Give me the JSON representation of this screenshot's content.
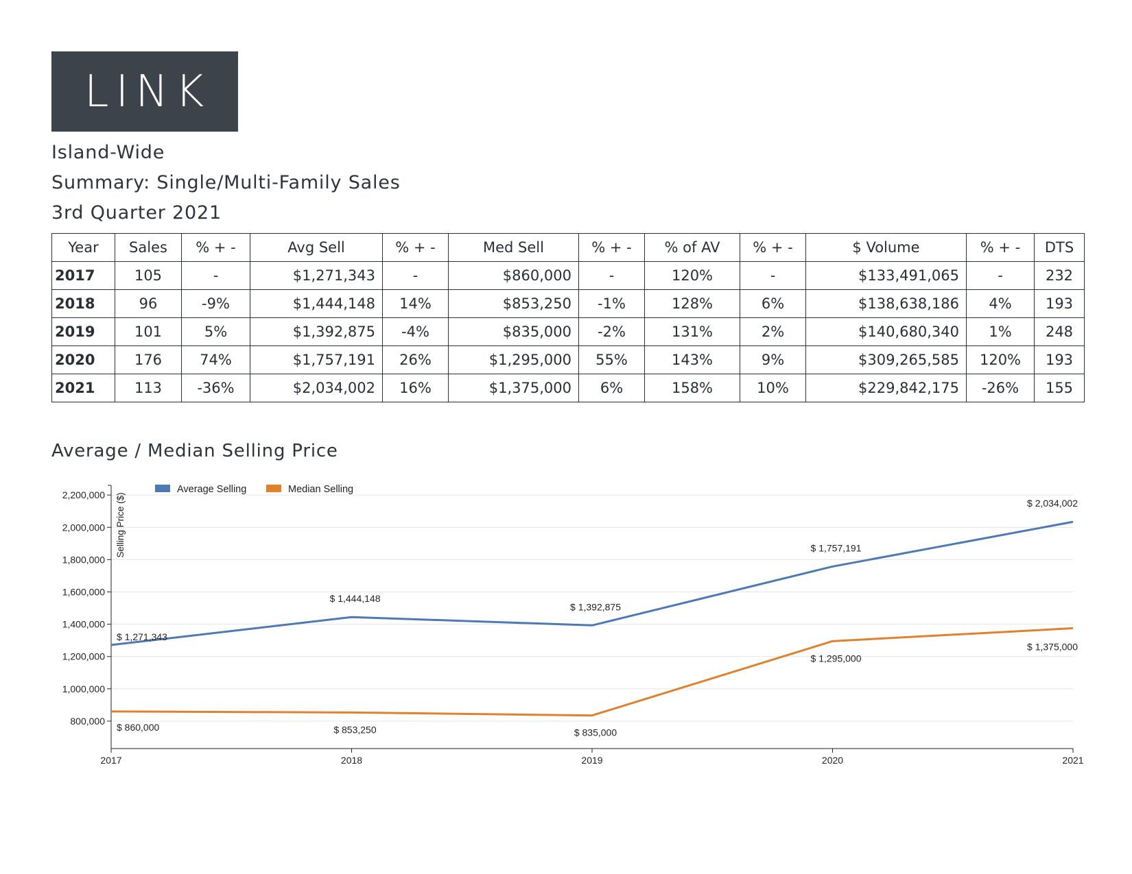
{
  "logo": {
    "text": "LINK"
  },
  "header": {
    "region": "Island-Wide",
    "summary": "Summary: Single/Multi-Family Sales",
    "period": "3rd Quarter 2021"
  },
  "table": {
    "columns": [
      "Year",
      "Sales",
      "% + -",
      "Avg Sell",
      "% + -",
      "Med Sell",
      "% + -",
      "% of AV",
      "% + -",
      "$ Volume",
      "% + -",
      "DTS"
    ],
    "rows": [
      [
        "2017",
        "105",
        "-",
        "$1,271,343",
        "-",
        "$860,000",
        "-",
        "120%",
        "-",
        "$133,491,065",
        "-",
        "232"
      ],
      [
        "2018",
        "96",
        "-9%",
        "$1,444,148",
        "14%",
        "$853,250",
        "-1%",
        "128%",
        "6%",
        "$138,638,186",
        "4%",
        "193"
      ],
      [
        "2019",
        "101",
        "5%",
        "$1,392,875",
        "-4%",
        "$835,000",
        "-2%",
        "131%",
        "2%",
        "$140,680,340",
        "1%",
        "248"
      ],
      [
        "2020",
        "176",
        "74%",
        "$1,757,191",
        "26%",
        "$1,295,000",
        "55%",
        "143%",
        "9%",
        "$309,265,585",
        "120%",
        "193"
      ],
      [
        "2021",
        "113",
        "-36%",
        "$2,034,002",
        "16%",
        "$1,375,000",
        "6%",
        "158%",
        "10%",
        "$229,842,175",
        "-26%",
        "155"
      ]
    ]
  },
  "chart_section": {
    "title": "Average / Median Selling Price"
  },
  "chart_data": {
    "type": "line",
    "title": "Average / Median Selling Price",
    "xlabel": "",
    "ylabel": "Selling Price ($)",
    "x": [
      "2017",
      "2018",
      "2019",
      "2020",
      "2021"
    ],
    "ylim": [
      630000,
      2260000
    ],
    "yticks": [
      800000,
      1000000,
      1200000,
      1400000,
      1600000,
      1800000,
      2000000,
      2200000
    ],
    "ytick_labels": [
      "800,000",
      "1,000,000",
      "1,200,000",
      "1,400,000",
      "1,600,000",
      "1,800,000",
      "2,000,000",
      "2,200,000"
    ],
    "grid": true,
    "legend": "top-left",
    "series": [
      {
        "name": "Average Selling",
        "color": "#4e79b5",
        "values": [
          1271343,
          1444148,
          1392875,
          1757191,
          2034002
        ],
        "labels": [
          "$ 1,271,343",
          "$ 1,444,148",
          "$ 1,392,875",
          "$ 1,757,191",
          "$ 2,034,002"
        ]
      },
      {
        "name": "Median Selling",
        "color": "#e1812c",
        "values": [
          860000,
          853250,
          835000,
          1295000,
          1375000
        ],
        "labels": [
          "$ 860,000",
          "$ 853,250",
          "$ 835,000",
          "$ 1,295,000",
          "$ 1,375,000"
        ]
      }
    ]
  }
}
